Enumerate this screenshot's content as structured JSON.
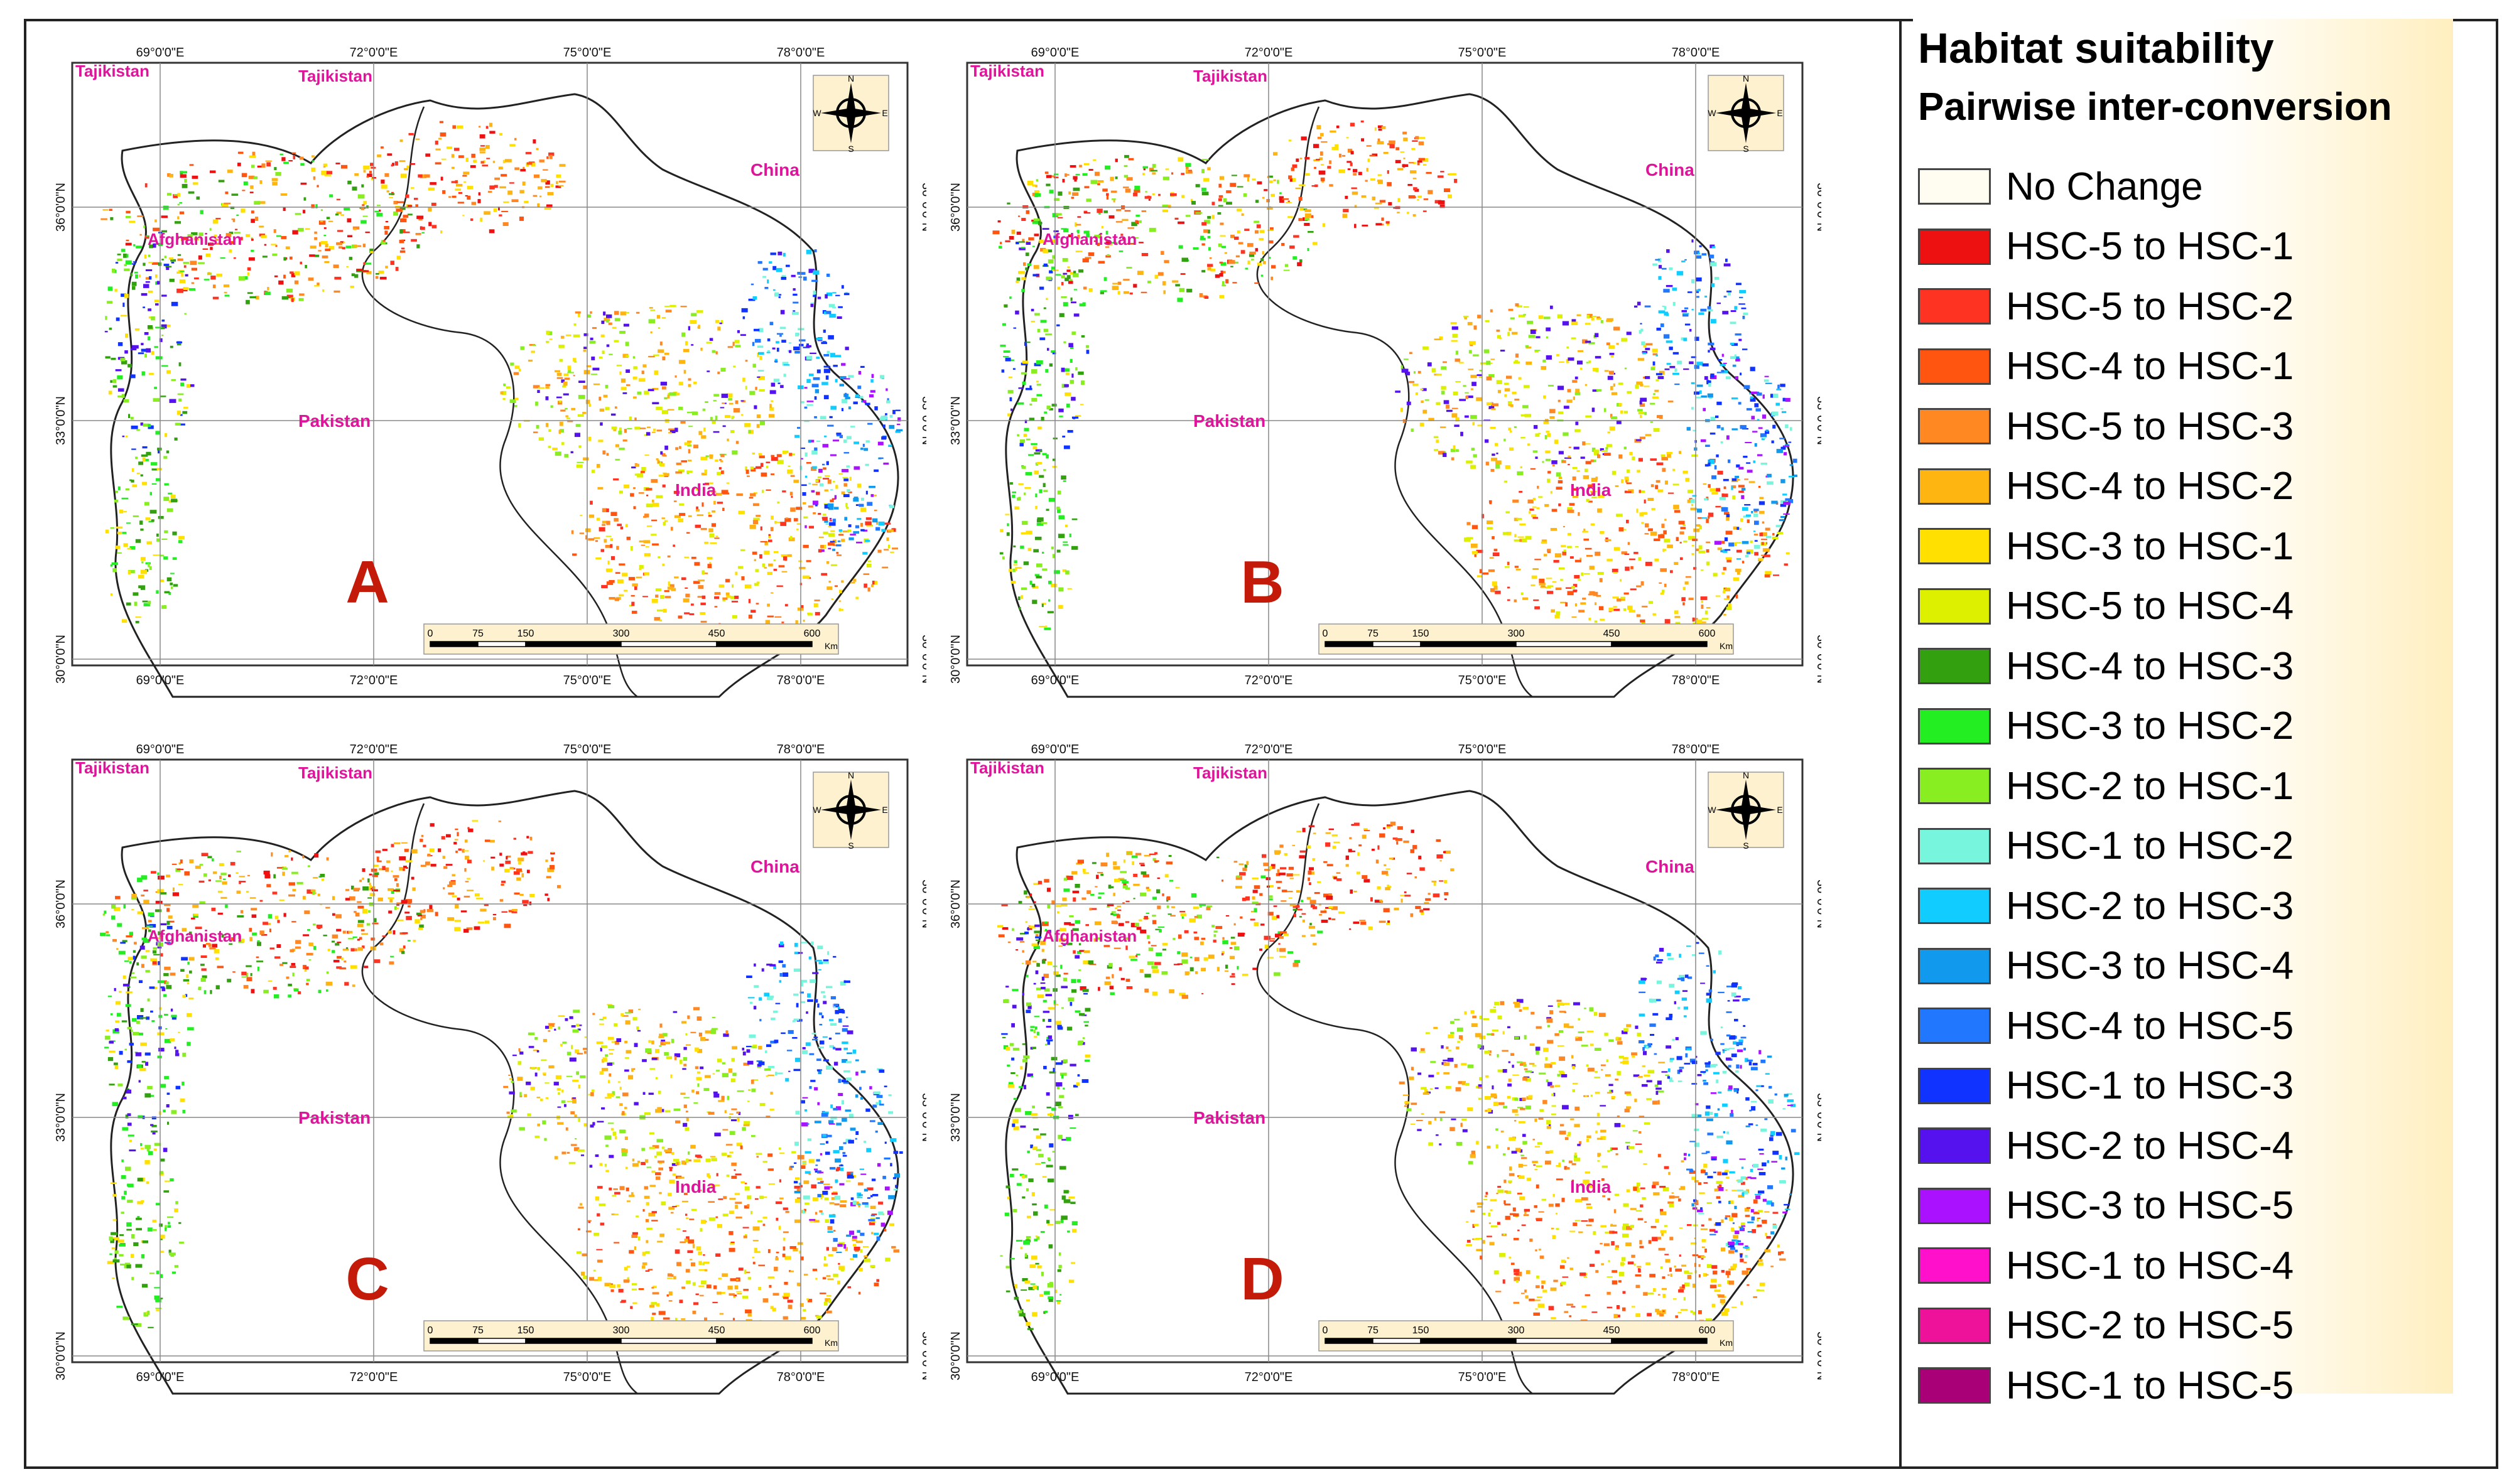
{
  "legend": {
    "title": "Habitat suitability",
    "subtitle": "Pairwise inter-conversion",
    "items": [
      {
        "label": "No Change",
        "color": "#fffdf2"
      },
      {
        "label": "HSC-5 to HSC-1",
        "color": "#ee1111"
      },
      {
        "label": "HSC-5 to HSC-2",
        "color": "#ff3322"
      },
      {
        "label": "HSC-4 to HSC-1",
        "color": "#ff5511"
      },
      {
        "label": "HSC-5 to HSC-3",
        "color": "#ff8822"
      },
      {
        "label": "HSC-4 to HSC-2",
        "color": "#ffb511"
      },
      {
        "label": "HSC-3 to HSC-1",
        "color": "#ffe000"
      },
      {
        "label": "HSC-5 to HSC-4",
        "color": "#ddf000"
      },
      {
        "label": "HSC-4 to HSC-3",
        "color": "#33a010"
      },
      {
        "label": "HSC-3 to HSC-2",
        "color": "#22ee22"
      },
      {
        "label": "HSC-2 to HSC-1",
        "color": "#88ee22"
      },
      {
        "label": "HSC-1 to HSC-2",
        "color": "#77f5dd"
      },
      {
        "label": "HSC-2 to HSC-3",
        "color": "#11ccff"
      },
      {
        "label": "HSC-3 to HSC-4",
        "color": "#1199ee"
      },
      {
        "label": "HSC-4 to HSC-5",
        "color": "#2277ff"
      },
      {
        "label": "HSC-1 to HSC-3",
        "color": "#1133ff"
      },
      {
        "label": "HSC-2 to HSC-4",
        "color": "#5511ee"
      },
      {
        "label": "HSC-3 to HSC-5",
        "color": "#aa11ff"
      },
      {
        "label": "HSC-1 to HSC-4",
        "color": "#ff11cc"
      },
      {
        "label": "HSC-2 to HSC-5",
        "color": "#ee1199"
      },
      {
        "label": "HSC-1 to HSC-5",
        "color": "#aa0077"
      }
    ]
  },
  "axes": {
    "lon_labels": [
      "69°0'0\"E",
      "72°0'0\"E",
      "75°0'0\"E",
      "78°0'0\"E"
    ],
    "lat_labels": [
      "36°0'0\"N",
      "33°0'0\"N",
      "30°0'0\"N"
    ]
  },
  "countries": {
    "tajikistan": "Tajikistan",
    "afghanistan": "Afghanistan",
    "pakistan": "Pakistan",
    "china": "China",
    "india": "India"
  },
  "scalebar": {
    "ticks": [
      "0",
      "75",
      "150",
      "300",
      "450",
      "600"
    ],
    "unit": "Km"
  },
  "compass": {
    "n": "N",
    "s": "S",
    "e": "E",
    "w": "W"
  },
  "panels": [
    {
      "id": "A",
      "label": "A"
    },
    {
      "id": "B",
      "label": "B"
    },
    {
      "id": "C",
      "label": "C"
    },
    {
      "id": "D",
      "label": "D"
    }
  ]
}
